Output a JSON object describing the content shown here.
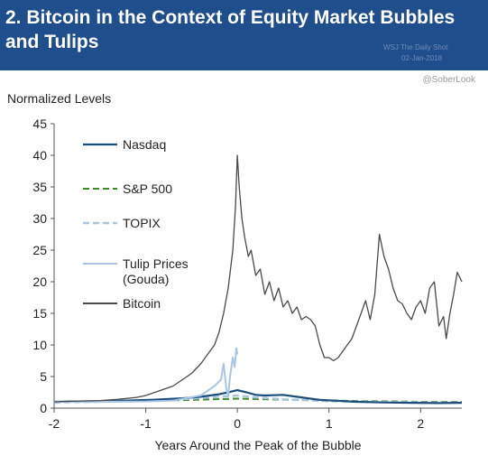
{
  "header": {
    "title": "2. Bitcoin in the Context of Equity Market Bubbles\nand Tulips",
    "bg_color": "#1f4e8c",
    "watermark_lines": [
      "WSJ The Daily Shot",
      "02-Jan-2018"
    ]
  },
  "handle": "@SoberLook",
  "chart_data": {
    "type": "line",
    "title": "2. Bitcoin in the Context of Equity Market Bubbles and Tulips",
    "ylabel": "Normalized Levels",
    "xlabel": "Years Around the Peak of the Bubble",
    "xlim": [
      -2,
      2.45
    ],
    "ylim": [
      0,
      45
    ],
    "xticks": [
      "-2",
      "-1",
      "0",
      "1",
      "2"
    ],
    "xtick_values": [
      -2,
      -1,
      0,
      1,
      2
    ],
    "yticks": [
      "0",
      "5",
      "10",
      "15",
      "20",
      "25",
      "30",
      "35",
      "40",
      "45"
    ],
    "ytick_values": [
      0,
      5,
      10,
      15,
      20,
      25,
      30,
      35,
      40,
      45
    ],
    "grid": false,
    "legend_position": "top-left",
    "series": [
      {
        "name": "Nasdaq",
        "color": "#1b4f7a",
        "dash": "solid",
        "width": 2.2,
        "x": [
          -2,
          -1.5,
          -1.2,
          -0.9,
          -0.6,
          -0.4,
          -0.2,
          -0.1,
          0,
          0.1,
          0.2,
          0.3,
          0.5,
          0.7,
          0.9,
          1.1,
          1.3,
          1.6,
          1.9,
          2.2,
          2.45
        ],
        "y": [
          1.0,
          1.1,
          1.2,
          1.35,
          1.55,
          1.8,
          2.2,
          2.5,
          2.85,
          2.5,
          2.1,
          2.0,
          2.1,
          1.7,
          1.3,
          1.15,
          1.0,
          0.9,
          0.85,
          0.8,
          0.85
        ]
      },
      {
        "name": "S&P 500",
        "color": "#3f8a2b",
        "dash": "dashed",
        "width": 2.0,
        "x": [
          -2,
          -1.5,
          -1,
          -0.5,
          0,
          0.5,
          1,
          1.5,
          2,
          2.45
        ],
        "y": [
          1.0,
          1.05,
          1.15,
          1.3,
          1.5,
          1.35,
          1.2,
          1.1,
          1.0,
          1.0
        ]
      },
      {
        "name": "TOPIX",
        "color": "#a8c6e4",
        "dash": "dashed",
        "width": 2.5,
        "x": [
          -2,
          -1.5,
          -1,
          -0.5,
          -0.2,
          0,
          0.2,
          0.5,
          1,
          1.5,
          2,
          2.45
        ],
        "y": [
          0.9,
          1.0,
          1.2,
          1.5,
          1.8,
          2.0,
          1.7,
          1.4,
          1.1,
          1.0,
          0.9,
          0.9
        ]
      },
      {
        "name": "Tulip Prices\n(Gouda)",
        "color": "#a8c6e4",
        "dash": "solid",
        "width": 2.0,
        "x": [
          -2,
          -1.5,
          -1,
          -0.7,
          -0.4,
          -0.25,
          -0.18,
          -0.15,
          -0.12,
          -0.1,
          -0.08,
          -0.05,
          -0.03,
          -0.01,
          0.0
        ],
        "y": [
          1.0,
          1.0,
          1.05,
          1.2,
          2.0,
          3.5,
          4.5,
          7.0,
          3.0,
          2.0,
          5.0,
          8.0,
          6.5,
          9.5,
          8.5
        ]
      },
      {
        "name": "Bitcoin",
        "color": "#4a4a4a",
        "dash": "solid",
        "width": 1.3,
        "x": [
          -2,
          -1.8,
          -1.5,
          -1.3,
          -1.1,
          -1.0,
          -0.9,
          -0.8,
          -0.7,
          -0.6,
          -0.5,
          -0.4,
          -0.3,
          -0.25,
          -0.2,
          -0.15,
          -0.1,
          -0.05,
          -0.02,
          0,
          0.02,
          0.05,
          0.08,
          0.12,
          0.15,
          0.2,
          0.25,
          0.3,
          0.35,
          0.4,
          0.45,
          0.5,
          0.55,
          0.6,
          0.65,
          0.7,
          0.75,
          0.8,
          0.85,
          0.9,
          0.95,
          1.0,
          1.05,
          1.1,
          1.15,
          1.2,
          1.25,
          1.3,
          1.35,
          1.4,
          1.45,
          1.5,
          1.55,
          1.6,
          1.65,
          1.7,
          1.75,
          1.8,
          1.85,
          1.9,
          1.95,
          2.0,
          2.05,
          2.1,
          2.15,
          2.2,
          2.25,
          2.28,
          2.32,
          2.36,
          2.4,
          2.45
        ],
        "y": [
          1.0,
          1.1,
          1.2,
          1.4,
          1.7,
          2.0,
          2.5,
          3.0,
          3.5,
          4.5,
          5.5,
          7.0,
          9.0,
          10.0,
          12.0,
          15.0,
          19.0,
          25.0,
          32.0,
          40.0,
          35.0,
          30.0,
          27.0,
          24.0,
          25.0,
          21.0,
          22.0,
          18.0,
          20.0,
          17.0,
          19.0,
          16.0,
          17.0,
          15.0,
          16.0,
          14.0,
          14.5,
          14.0,
          13.0,
          10.0,
          8.0,
          8.0,
          7.5,
          8.0,
          9.0,
          10.0,
          11.0,
          13.0,
          15.0,
          17.0,
          14.0,
          18.0,
          27.5,
          24.0,
          22.0,
          19.0,
          17.0,
          16.5,
          15.0,
          14.0,
          16.0,
          17.0,
          15.0,
          19.0,
          20.0,
          13.0,
          14.5,
          11.0,
          15.0,
          18.0,
          21.5,
          20.0
        ]
      }
    ]
  }
}
